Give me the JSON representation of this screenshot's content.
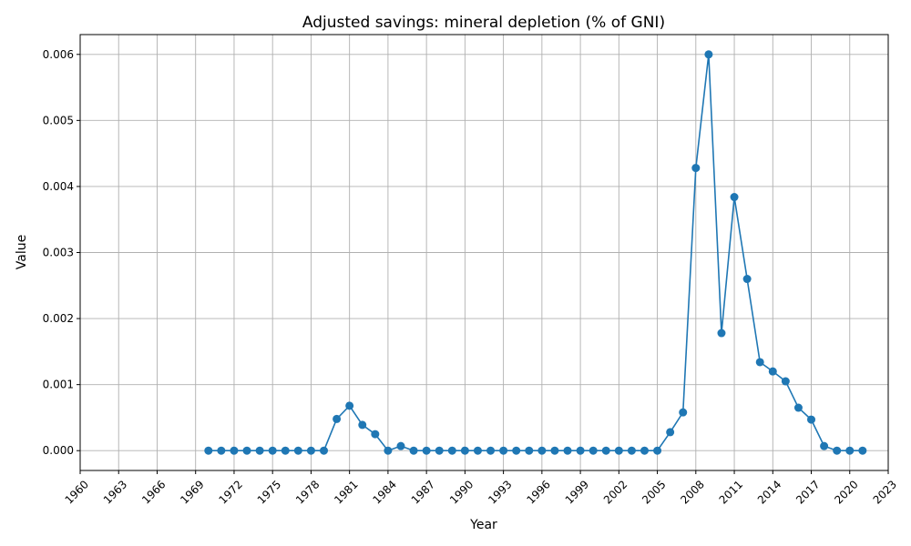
{
  "chart_data": {
    "type": "line",
    "title": "Adjusted savings: mineral depletion (% of GNI)",
    "xlabel": "Year",
    "ylabel": "Value",
    "xlim": [
      1960,
      2023
    ],
    "ylim": [
      -0.0003,
      0.0063
    ],
    "xticks": [
      1960,
      1963,
      1966,
      1969,
      1972,
      1975,
      1978,
      1981,
      1984,
      1987,
      1990,
      1993,
      1996,
      1999,
      2002,
      2005,
      2008,
      2011,
      2014,
      2017,
      2020,
      2023
    ],
    "yticks": [
      0.0,
      0.001,
      0.002,
      0.003,
      0.004,
      0.005,
      0.006
    ],
    "ytick_labels": [
      "0.000",
      "0.001",
      "0.002",
      "0.003",
      "0.004",
      "0.005",
      "0.006"
    ],
    "grid": true,
    "series_color": "#1f77b4",
    "x": [
      1970,
      1971,
      1972,
      1973,
      1974,
      1975,
      1976,
      1977,
      1978,
      1979,
      1980,
      1981,
      1982,
      1983,
      1984,
      1985,
      1986,
      1987,
      1988,
      1989,
      1990,
      1991,
      1992,
      1993,
      1994,
      1995,
      1996,
      1997,
      1998,
      1999,
      2000,
      2001,
      2002,
      2003,
      2004,
      2005,
      2006,
      2007,
      2008,
      2009,
      2010,
      2011,
      2012,
      2013,
      2014,
      2015,
      2016,
      2017,
      2018,
      2019,
      2020,
      2021
    ],
    "y": [
      0,
      0,
      0,
      0,
      0,
      0,
      0,
      0,
      0,
      0,
      0.00048,
      0.00068,
      0.00039,
      0.00025,
      0,
      7e-05,
      0,
      0,
      0,
      0,
      0,
      0,
      0,
      0,
      0,
      0,
      0,
      0,
      0,
      0,
      0,
      0,
      0,
      0,
      0,
      0,
      0.00028,
      0.00058,
      0.00428,
      0.006,
      0.00178,
      0.00384,
      0.0026,
      0.00134,
      0.0012,
      0.00105,
      0.00065,
      0.00047,
      7e-05,
      0,
      0,
      0
    ]
  }
}
